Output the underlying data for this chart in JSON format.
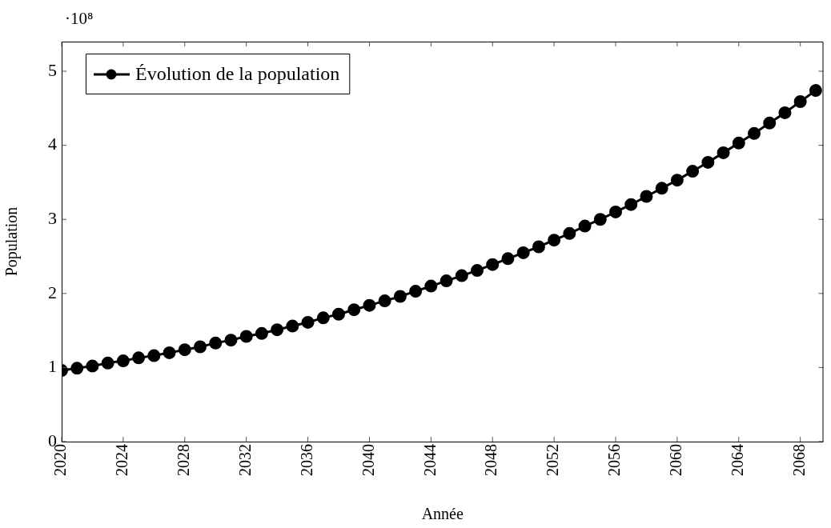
{
  "chart_data": {
    "type": "line",
    "xlabel": "Année",
    "ylabel": "Population",
    "annotations": [
      "·10⁸"
    ],
    "x": [
      2020,
      2021,
      2022,
      2023,
      2024,
      2025,
      2026,
      2027,
      2028,
      2029,
      2030,
      2031,
      2032,
      2033,
      2034,
      2035,
      2036,
      2037,
      2038,
      2039,
      2040,
      2041,
      2042,
      2043,
      2044,
      2045,
      2046,
      2047,
      2048,
      2049,
      2050,
      2051,
      2052,
      2053,
      2054,
      2055,
      2056,
      2057,
      2058,
      2059,
      2060,
      2061,
      2062,
      2063,
      2064,
      2065,
      2066,
      2067,
      2068,
      2069
    ],
    "series": [
      {
        "name": "Évolution de la population",
        "color": "#000000",
        "values": [
          0.96,
          0.99,
          1.02,
          1.06,
          1.09,
          1.13,
          1.16,
          1.2,
          1.24,
          1.28,
          1.33,
          1.37,
          1.42,
          1.46,
          1.51,
          1.56,
          1.61,
          1.67,
          1.72,
          1.78,
          1.84,
          1.9,
          1.96,
          2.03,
          2.1,
          2.17,
          2.24,
          2.31,
          2.39,
          2.47,
          2.55,
          2.63,
          2.72,
          2.81,
          2.91,
          3.0,
          3.1,
          3.2,
          3.31,
          3.42,
          3.53,
          3.65,
          3.77,
          3.9,
          4.03,
          4.16,
          4.3,
          4.44,
          4.59,
          4.74
        ]
      }
    ],
    "xlim": [
      2020,
      2069.5
    ],
    "xticks": [
      2020,
      2024,
      2028,
      2032,
      2036,
      2040,
      2044,
      2048,
      2052,
      2056,
      2060,
      2064,
      2068
    ],
    "ylim": [
      0,
      5.4
    ],
    "yticks": [
      0,
      1,
      2,
      3,
      4,
      5
    ],
    "legend": "top left",
    "marker": "circle",
    "line_style": "solid",
    "grid": false
  }
}
